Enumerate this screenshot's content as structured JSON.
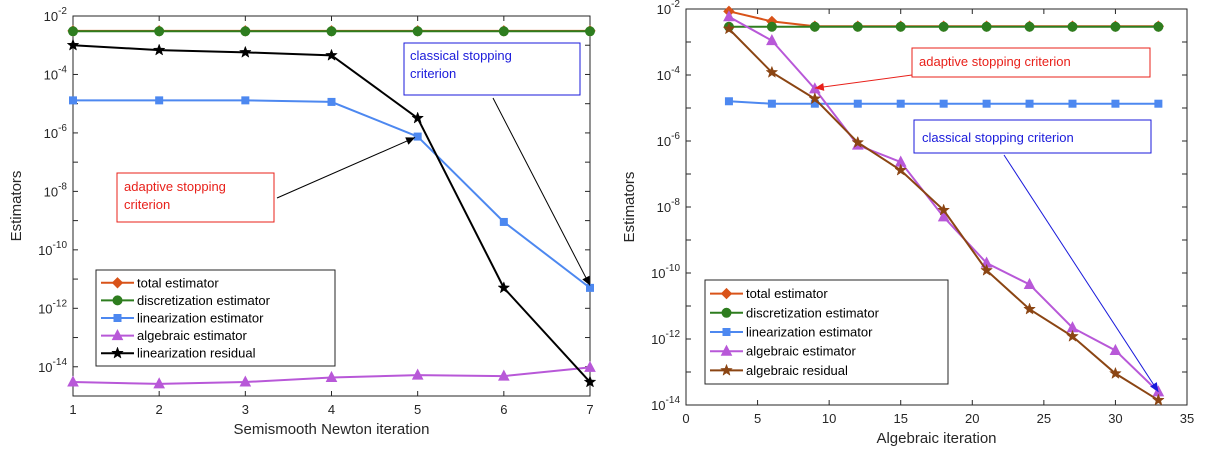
{
  "chart_data": [
    {
      "type": "line",
      "xlabel": "Semismooth Newton iteration",
      "ylabel": "Estimators",
      "xlim": [
        1,
        7
      ],
      "ylim": [
        1e-15,
        0.01
      ],
      "yscale": "log",
      "grid": false,
      "legend_position": "bottom-left",
      "xticks": [
        "1",
        "2",
        "3",
        "4",
        "5",
        "6",
        "7"
      ],
      "yticks": [
        {
          "base": "10",
          "exp": "-14"
        },
        {
          "base": "10",
          "exp": "-12"
        },
        {
          "base": "10",
          "exp": "-10"
        },
        {
          "base": "10",
          "exp": "-8"
        },
        {
          "base": "10",
          "exp": "-6"
        },
        {
          "base": "10",
          "exp": "-4"
        },
        {
          "base": "10",
          "exp": "-2"
        }
      ],
      "x": [
        1,
        2,
        3,
        4,
        5,
        6,
        7
      ],
      "series": [
        {
          "name": "total estimator",
          "color": "#d95319",
          "marker": "diamond",
          "values": [
            0.0031,
            0.0031,
            0.0031,
            0.0031,
            0.0031,
            0.0031,
            0.0031
          ]
        },
        {
          "name": "discretization estimator",
          "color": "#2e7d1f",
          "marker": "circle",
          "values": [
            0.003,
            0.003,
            0.003,
            0.003,
            0.003,
            0.003,
            0.003
          ]
        },
        {
          "name": "linearization estimator",
          "color": "#4d88f0",
          "marker": "square",
          "values": [
            1.3e-05,
            1.3e-05,
            1.3e-05,
            1.15e-05,
            7.5e-07,
            9e-10,
            5e-12
          ]
        },
        {
          "name": "algebraic estimator",
          "color": "#b858d8",
          "marker": "triangle",
          "values": [
            3e-15,
            2.6e-15,
            3e-15,
            4.3e-15,
            5.2e-15,
            4.8e-15,
            9.5e-15
          ]
        },
        {
          "name": "linearization residual",
          "color": "#000000",
          "marker": "star",
          "values": [
            0.001,
            0.00068,
            0.00057,
            0.00045,
            3.2e-06,
            5e-12,
            3e-15
          ]
        }
      ],
      "annotations": [
        {
          "text": [
            "classical stopping",
            "criterion"
          ],
          "color": "#1a1adb",
          "arrow_to": [
            7,
            6e-12
          ]
        },
        {
          "text": [
            "adaptive stopping",
            "criterion"
          ],
          "color": "#e8201a",
          "arrow_to": [
            4.97,
            7e-07
          ]
        }
      ]
    },
    {
      "type": "line",
      "xlabel": "Algebraic iteration",
      "ylabel": "Estimators",
      "xlim": [
        0,
        35
      ],
      "ylim": [
        1e-14,
        0.01
      ],
      "yscale": "log",
      "grid": false,
      "legend_position": "bottom-left",
      "xticks": [
        "0",
        "5",
        "10",
        "15",
        "20",
        "25",
        "30",
        "35"
      ],
      "yticks": [
        {
          "base": "10",
          "exp": "-14"
        },
        {
          "base": "10",
          "exp": "-12"
        },
        {
          "base": "10",
          "exp": "-10"
        },
        {
          "base": "10",
          "exp": "-8"
        },
        {
          "base": "10",
          "exp": "-6"
        },
        {
          "base": "10",
          "exp": "-4"
        },
        {
          "base": "10",
          "exp": "-2"
        }
      ],
      "x": [
        3,
        6,
        9,
        12,
        15,
        18,
        21,
        24,
        27,
        30,
        33
      ],
      "series": [
        {
          "name": "total estimator",
          "color": "#d95319",
          "marker": "diamond",
          "values": [
            0.0085,
            0.0042,
            0.003,
            0.003,
            0.003,
            0.003,
            0.003,
            0.003,
            0.003,
            0.003,
            0.003
          ]
        },
        {
          "name": "discretization estimator",
          "color": "#2e7d1f",
          "marker": "circle",
          "values": [
            0.0029,
            0.0029,
            0.0029,
            0.0029,
            0.0029,
            0.0029,
            0.0029,
            0.0029,
            0.0029,
            0.0029,
            0.0029
          ]
        },
        {
          "name": "linearization estimator",
          "color": "#4d88f0",
          "marker": "square",
          "values": [
            1.6e-05,
            1.35e-05,
            1.35e-05,
            1.35e-05,
            1.35e-05,
            1.35e-05,
            1.35e-05,
            1.35e-05,
            1.35e-05,
            1.35e-05,
            1.35e-05
          ]
        },
        {
          "name": "algebraic estimator",
          "color": "#b858d8",
          "marker": "triangle",
          "values": [
            0.0058,
            0.0011,
            3.8e-05,
            7.5e-07,
            2.3e-07,
            5e-09,
            2e-10,
            4.5e-11,
            2.2e-12,
            4.5e-13,
            2.5e-14
          ]
        },
        {
          "name": "algebraic residual",
          "color": "#8b4513",
          "marker": "star",
          "values": [
            0.0025,
            0.00012,
            1.9e-05,
            9e-07,
            1.3e-07,
            8e-09,
            1.2e-10,
            8e-12,
            1.2e-12,
            9e-14,
            1.4e-14
          ]
        }
      ],
      "annotations": [
        {
          "text": [
            "adaptive stopping criterion"
          ],
          "color": "#e8201a",
          "arrow_to": [
            9,
            4e-05
          ]
        },
        {
          "text": [
            "classical stopping criterion"
          ],
          "color": "#1a1adb",
          "arrow_to": [
            33,
            2.5e-14
          ]
        }
      ]
    }
  ]
}
